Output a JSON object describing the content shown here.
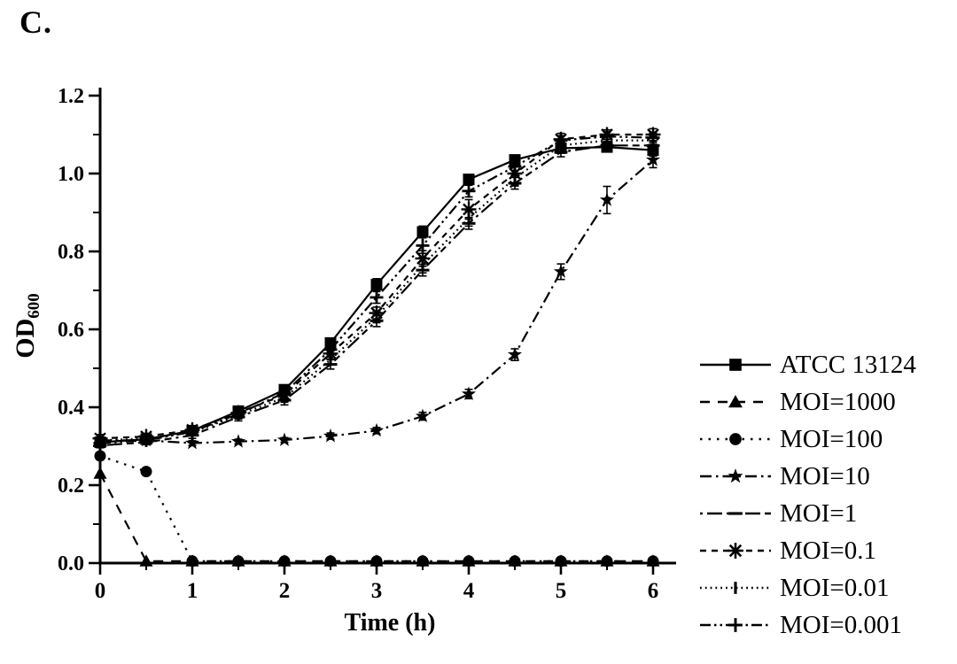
{
  "panel_label": "C.",
  "colors": {
    "foreground": "#000000",
    "background": "#ffffff"
  },
  "chart_data": {
    "type": "line",
    "title": "",
    "xlabel": "Time (h)",
    "ylabel": "OD",
    "ylabel_subscript": "600",
    "xlim": [
      0,
      6.25
    ],
    "ylim": [
      0,
      1.2
    ],
    "x_ticks": [
      0,
      1,
      2,
      3,
      4,
      5,
      6
    ],
    "y_ticks": [
      "0.0",
      "0.2",
      "0.4",
      "0.6",
      "0.8",
      "1.0",
      "1.2"
    ],
    "x_minor_step": 0.5,
    "y_minor_step": 0.1,
    "grid": false,
    "legend_position": "right",
    "x": [
      0,
      0.5,
      1,
      1.5,
      2,
      2.5,
      3,
      3.5,
      4,
      4.5,
      5,
      5.5,
      6
    ],
    "series": [
      {
        "name": "ATCC 13124",
        "marker": "square",
        "line_style": "solid",
        "values": [
          0.31,
          0.318,
          0.34,
          0.39,
          0.445,
          0.565,
          0.715,
          0.85,
          0.985,
          1.035,
          1.065,
          1.068,
          1.06
        ],
        "errors": [
          0.008,
          0.008,
          0.008,
          0.01,
          0.012,
          0.012,
          0.015,
          0.015,
          0.012,
          0.012,
          0.012,
          0.012,
          0.015
        ]
      },
      {
        "name": "MOI=1000",
        "marker": "triangle",
        "line_style": "dashed",
        "values": [
          0.23,
          0.005,
          0.005,
          0.005,
          0.005,
          0.005,
          0.005,
          0.005,
          0.005,
          0.005,
          0.005,
          0.005,
          0.005
        ],
        "errors": [
          0,
          0,
          0,
          0,
          0,
          0,
          0,
          0,
          0,
          0,
          0,
          0,
          0
        ]
      },
      {
        "name": "MOI=100",
        "marker": "circle",
        "line_style": "dotted",
        "values": [
          0.275,
          0.235,
          0.005,
          0.005,
          0.005,
          0.005,
          0.005,
          0.005,
          0.005,
          0.005,
          0.005,
          0.005,
          0.005
        ],
        "errors": [
          0,
          0,
          0,
          0,
          0,
          0,
          0,
          0,
          0,
          0,
          0,
          0,
          0
        ]
      },
      {
        "name": "MOI=10",
        "marker": "star",
        "line_style": "dashdot",
        "values": [
          0.315,
          0.315,
          0.308,
          0.312,
          0.316,
          0.326,
          0.34,
          0.377,
          0.434,
          0.535,
          0.748,
          0.932,
          1.035
        ],
        "errors": [
          0.008,
          0.006,
          0.006,
          0.006,
          0.006,
          0.008,
          0.008,
          0.01,
          0.012,
          0.015,
          0.02,
          0.035,
          0.02
        ]
      },
      {
        "name": "MOI=1",
        "marker": "dash",
        "line_style": "dashdotlong",
        "values": [
          0.302,
          0.31,
          0.328,
          0.375,
          0.418,
          0.51,
          0.622,
          0.752,
          0.872,
          0.975,
          1.055,
          1.072,
          1.072
        ],
        "errors": [
          0.006,
          0.006,
          0.008,
          0.01,
          0.012,
          0.012,
          0.015,
          0.015,
          0.015,
          0.015,
          0.012,
          0.01,
          0.012
        ]
      },
      {
        "name": "MOI=0.1",
        "marker": "asterisk",
        "line_style": "dashshort",
        "values": [
          0.32,
          0.325,
          0.342,
          0.386,
          0.432,
          0.538,
          0.642,
          0.782,
          0.908,
          1.0,
          1.088,
          1.1,
          1.1
        ],
        "errors": [
          0.01,
          0.008,
          0.01,
          0.012,
          0.015,
          0.015,
          0.015,
          0.02,
          0.025,
          0.03,
          0.015,
          0.012,
          0.015
        ]
      },
      {
        "name": "MOI=0.01",
        "marker": "vbar",
        "line_style": "dotfine",
        "values": [
          0.315,
          0.32,
          0.335,
          0.38,
          0.425,
          0.522,
          0.632,
          0.765,
          0.885,
          0.988,
          1.072,
          1.085,
          1.085
        ],
        "errors": [
          0.008,
          0.008,
          0.008,
          0.01,
          0.012,
          0.012,
          0.015,
          0.02,
          0.02,
          0.02,
          0.012,
          0.012,
          0.012
        ]
      },
      {
        "name": "MOI=0.001",
        "marker": "plus",
        "line_style": "dashdotdot",
        "values": [
          0.308,
          0.315,
          0.337,
          0.383,
          0.437,
          0.548,
          0.682,
          0.815,
          0.955,
          1.018,
          1.085,
          1.095,
          1.092
        ],
        "errors": [
          0.008,
          0.008,
          0.01,
          0.012,
          0.015,
          0.02,
          0.015,
          0.02,
          0.015,
          0.02,
          0.012,
          0.012,
          0.012
        ]
      }
    ]
  }
}
